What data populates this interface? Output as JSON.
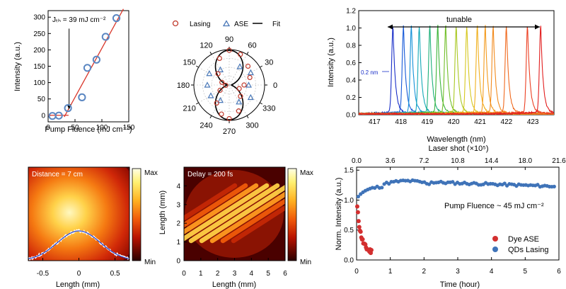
{
  "colors": {
    "lasing": "#c0392b",
    "ase": "#4a78b8",
    "fit": "#000000",
    "threshold_line": "#d9362a",
    "pump_marker": "#5b87c2",
    "white_profile": "#ffffff",
    "blue_profile": "#2e4bd0",
    "dye": "#d32f2f",
    "qds": "#3f73b8"
  },
  "chart_data": [
    {
      "id": "pump",
      "type": "scatter",
      "xlabel": "Pump Fluence (mJ cm⁻²)",
      "ylabel": "Intensity (a.u.)",
      "xlim": [
        0,
        150
      ],
      "ylim": [
        -20,
        320
      ],
      "xticks": [
        0,
        50,
        100,
        150
      ],
      "yticks": [
        0,
        50,
        100,
        150,
        200,
        250,
        300
      ],
      "annotation": "Jₜₕ = 39 mJ cm⁻²",
      "points": [
        {
          "x": 8,
          "y": -2
        },
        {
          "x": 20,
          "y": -1
        },
        {
          "x": 37,
          "y": 22
        },
        {
          "x": 63,
          "y": 55
        },
        {
          "x": 73,
          "y": 145
        },
        {
          "x": 90,
          "y": 170
        },
        {
          "x": 107,
          "y": 240
        },
        {
          "x": 127,
          "y": 297
        }
      ],
      "fit_above": {
        "x": [
          30,
          140
        ],
        "y": [
          -5,
          325
        ]
      },
      "fit_below": {
        "x": [
          0,
          38
        ],
        "y": [
          0,
          0
        ]
      },
      "threshold_x": 39
    },
    {
      "id": "polar",
      "type": "scatter",
      "legend": [
        "Lasing",
        "ASE",
        "Fit"
      ],
      "angle_labels": [
        "0",
        "30",
        "60",
        "90",
        "120",
        "150",
        "180",
        "210",
        "240",
        "270",
        "300",
        "330"
      ],
      "lasing": [
        {
          "a": 0,
          "r": 0.42
        },
        {
          "a": 20,
          "r": 0.62
        },
        {
          "a": 45,
          "r": 0.75
        },
        {
          "a": 70,
          "r": 0.92
        },
        {
          "a": 90,
          "r": 0.98
        },
        {
          "a": 110,
          "r": 0.8
        },
        {
          "a": 135,
          "r": 0.45
        },
        {
          "a": 160,
          "r": 0.22
        },
        {
          "a": 185,
          "r": 0.1
        },
        {
          "a": 210,
          "r": 0.3
        },
        {
          "a": 235,
          "r": 0.62
        },
        {
          "a": 255,
          "r": 0.85
        },
        {
          "a": 270,
          "r": 0.95
        },
        {
          "a": 290,
          "r": 0.78
        },
        {
          "a": 315,
          "r": 0.45
        },
        {
          "a": 340,
          "r": 0.3
        }
      ],
      "ase": [
        {
          "a": 0,
          "r": 0.55
        },
        {
          "a": 30,
          "r": 0.7
        },
        {
          "a": 60,
          "r": 0.6
        },
        {
          "a": 120,
          "r": 0.5
        },
        {
          "a": 150,
          "r": 0.65
        },
        {
          "a": 180,
          "r": 0.62
        },
        {
          "a": 210,
          "r": 0.6
        },
        {
          "a": 240,
          "r": 0.5
        },
        {
          "a": 300,
          "r": 0.55
        },
        {
          "a": 330,
          "r": 0.7
        }
      ]
    },
    {
      "id": "spectra",
      "type": "line",
      "xlabel": "Wavelength (nm)",
      "ylabel": "Intensity (a.u.)",
      "xlim": [
        416.4,
        423.8
      ],
      "ylim": [
        0,
        1.2
      ],
      "xticks": [
        417,
        418,
        419,
        420,
        421,
        422,
        423
      ],
      "yticks": [
        0.0,
        0.2,
        0.4,
        0.6,
        0.8,
        1.0,
        1.2
      ],
      "annotation": "tunable",
      "linewidth_label": "0.2 nm",
      "peaks": [
        {
          "x": 417.7,
          "color": "#1a2fc8"
        },
        {
          "x": 418.1,
          "color": "#1659d8"
        },
        {
          "x": 418.4,
          "color": "#1391d8"
        },
        {
          "x": 418.7,
          "color": "#14a9b8"
        },
        {
          "x": 419.1,
          "color": "#1db07a"
        },
        {
          "x": 419.4,
          "color": "#3db53a"
        },
        {
          "x": 419.7,
          "color": "#72bf2a"
        },
        {
          "x": 420.1,
          "color": "#a9c822"
        },
        {
          "x": 420.5,
          "color": "#d6c81f"
        },
        {
          "x": 420.9,
          "color": "#f0b01e"
        },
        {
          "x": 421.2,
          "color": "#f39a1c"
        },
        {
          "x": 421.5,
          "color": "#f28a1c"
        },
        {
          "x": 422.0,
          "color": "#f06a1f"
        },
        {
          "x": 422.8,
          "color": "#ec3f22"
        },
        {
          "x": 423.3,
          "color": "#e21f1f"
        }
      ]
    },
    {
      "id": "distance",
      "type": "heatmap",
      "label": "Distance = 7 cm",
      "xlabel": "Length (mm)",
      "xlim": [
        -0.7,
        0.7
      ],
      "xticks": [
        -0.5,
        0,
        0.5
      ],
      "colorbar": [
        "Max",
        "Min"
      ]
    },
    {
      "id": "delay",
      "type": "heatmap",
      "label": "Delay = 200 fs",
      "xlabel": "Length (mm)",
      "ylabel": "Length (mm)",
      "xlim": [
        0,
        6
      ],
      "ylim": [
        0,
        5
      ],
      "xticks": [
        0,
        1,
        2,
        3,
        4,
        5,
        6
      ],
      "yticks": [
        0,
        1,
        2,
        3,
        4
      ],
      "colorbar": [
        "Max",
        "Min"
      ]
    },
    {
      "id": "stability",
      "type": "scatter",
      "xlabel": "Time (hour)",
      "ylabel": "Norm. Intensity (a.u.)",
      "top_label": "Laser shot (×10⁵)",
      "xlim": [
        0,
        6
      ],
      "ylim": [
        0,
        1.55
      ],
      "xticks": [
        0,
        1,
        2,
        3,
        4,
        5,
        6
      ],
      "yticks": [
        0.0,
        0.5,
        1.0,
        1.5
      ],
      "top_ticks": [
        "0.0",
        "3.6",
        "7.2",
        "10.8",
        "14.4",
        "18.0",
        "21.6"
      ],
      "annotation": "Pump Fluence ~ 45 mJ cm⁻²",
      "legend": [
        "Dye ASE",
        "QDs Lasing"
      ]
    }
  ]
}
